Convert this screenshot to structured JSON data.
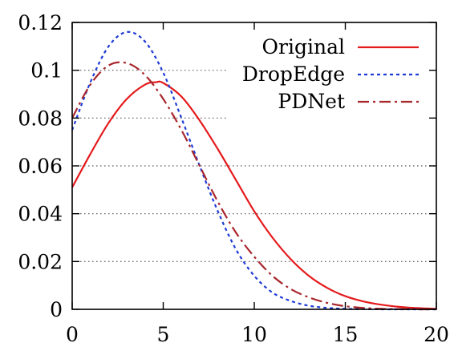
{
  "chart_data": {
    "type": "line",
    "title": "",
    "xlabel": "",
    "ylabel": "",
    "xlim": [
      0,
      20
    ],
    "ylim": [
      0,
      0.12
    ],
    "xticks": [
      "0",
      "5",
      "10",
      "15",
      "20"
    ],
    "yticks": [
      "0",
      "0.02",
      "0.04",
      "0.06",
      "0.08",
      "0.1",
      "0.12"
    ],
    "grid": "horizontal dotted",
    "legend_position": "top-right",
    "series": [
      {
        "name": "Original",
        "color": "#e41a1c",
        "style": "solid",
        "x": [
          0,
          1,
          2,
          3,
          4,
          4.6,
          5,
          6,
          7,
          8,
          9,
          10,
          11,
          12,
          13,
          14,
          15,
          16,
          17,
          18,
          19,
          20
        ],
        "y": [
          0.051,
          0.065,
          0.078,
          0.088,
          0.094,
          0.095,
          0.0947,
          0.089,
          0.079,
          0.067,
          0.054,
          0.041,
          0.03,
          0.021,
          0.014,
          0.009,
          0.0055,
          0.0033,
          0.0019,
          0.001,
          0.0005,
          0.0002
        ]
      },
      {
        "name": "DropEdge",
        "color": "#1f3bd6",
        "style": "dotted",
        "x": [
          0,
          1,
          2,
          3,
          4,
          5,
          6,
          7,
          8,
          9,
          10,
          11,
          12,
          13,
          14,
          15,
          16,
          17,
          18,
          19,
          20
        ],
        "y": [
          0.075,
          0.095,
          0.11,
          0.116,
          0.112,
          0.099,
          0.08,
          0.06,
          0.041,
          0.025,
          0.014,
          0.007,
          0.0035,
          0.0015,
          0.0006,
          0.0002,
          0.0001,
          0,
          0,
          0,
          0
        ]
      },
      {
        "name": "PDNet",
        "color": "#a8262c",
        "style": "dash-dot",
        "x": [
          0,
          1,
          2,
          3,
          4,
          5,
          6,
          7,
          8,
          9,
          10,
          11,
          12,
          13,
          14,
          15,
          16,
          17,
          18,
          19,
          20
        ],
        "y": [
          0.08,
          0.094,
          0.102,
          0.103,
          0.098,
          0.088,
          0.075,
          0.06,
          0.045,
          0.032,
          0.022,
          0.014,
          0.0085,
          0.005,
          0.0027,
          0.0013,
          0.0006,
          0.0002,
          0.0001,
          0,
          0
        ]
      }
    ]
  }
}
